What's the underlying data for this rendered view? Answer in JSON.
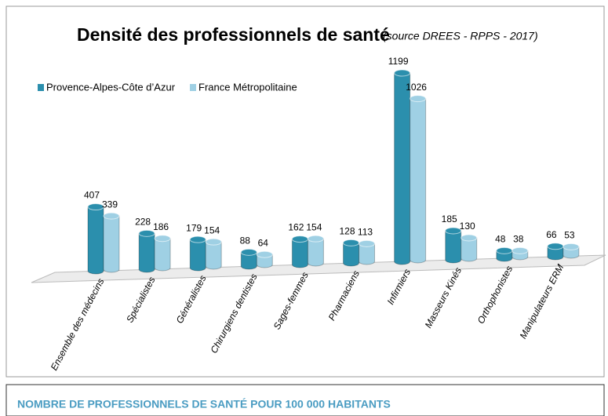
{
  "chart_data": {
    "type": "bar3d",
    "title": "Densité des professionnels de santé",
    "subtitle": "(source DREES - RPPS - 2017)",
    "caption": "NOMBRE DE PROFESSIONNELS DE SANTÉ POUR 100 000 HABITANTS",
    "categories": [
      "Ensemble des médecins",
      "Spécialistes",
      "Généralistes",
      "Chirurgiens dentistes",
      "Sages-femmes",
      "Pharmaciens",
      "Infirmiers",
      "Masseurs Kinés",
      "Orthophonistes",
      "Manipulateurs ERM"
    ],
    "series": [
      {
        "name": "Provence-Alpes-Côte d’Azur",
        "color": "#2b8fad",
        "values": [
          407,
          228,
          179,
          88,
          162,
          128,
          1199,
          185,
          48,
          66
        ]
      },
      {
        "name": "France Métropolitaine",
        "color": "#9fd0e4",
        "values": [
          339,
          186,
          154,
          64,
          154,
          113,
          1026,
          130,
          38,
          53
        ]
      }
    ]
  }
}
